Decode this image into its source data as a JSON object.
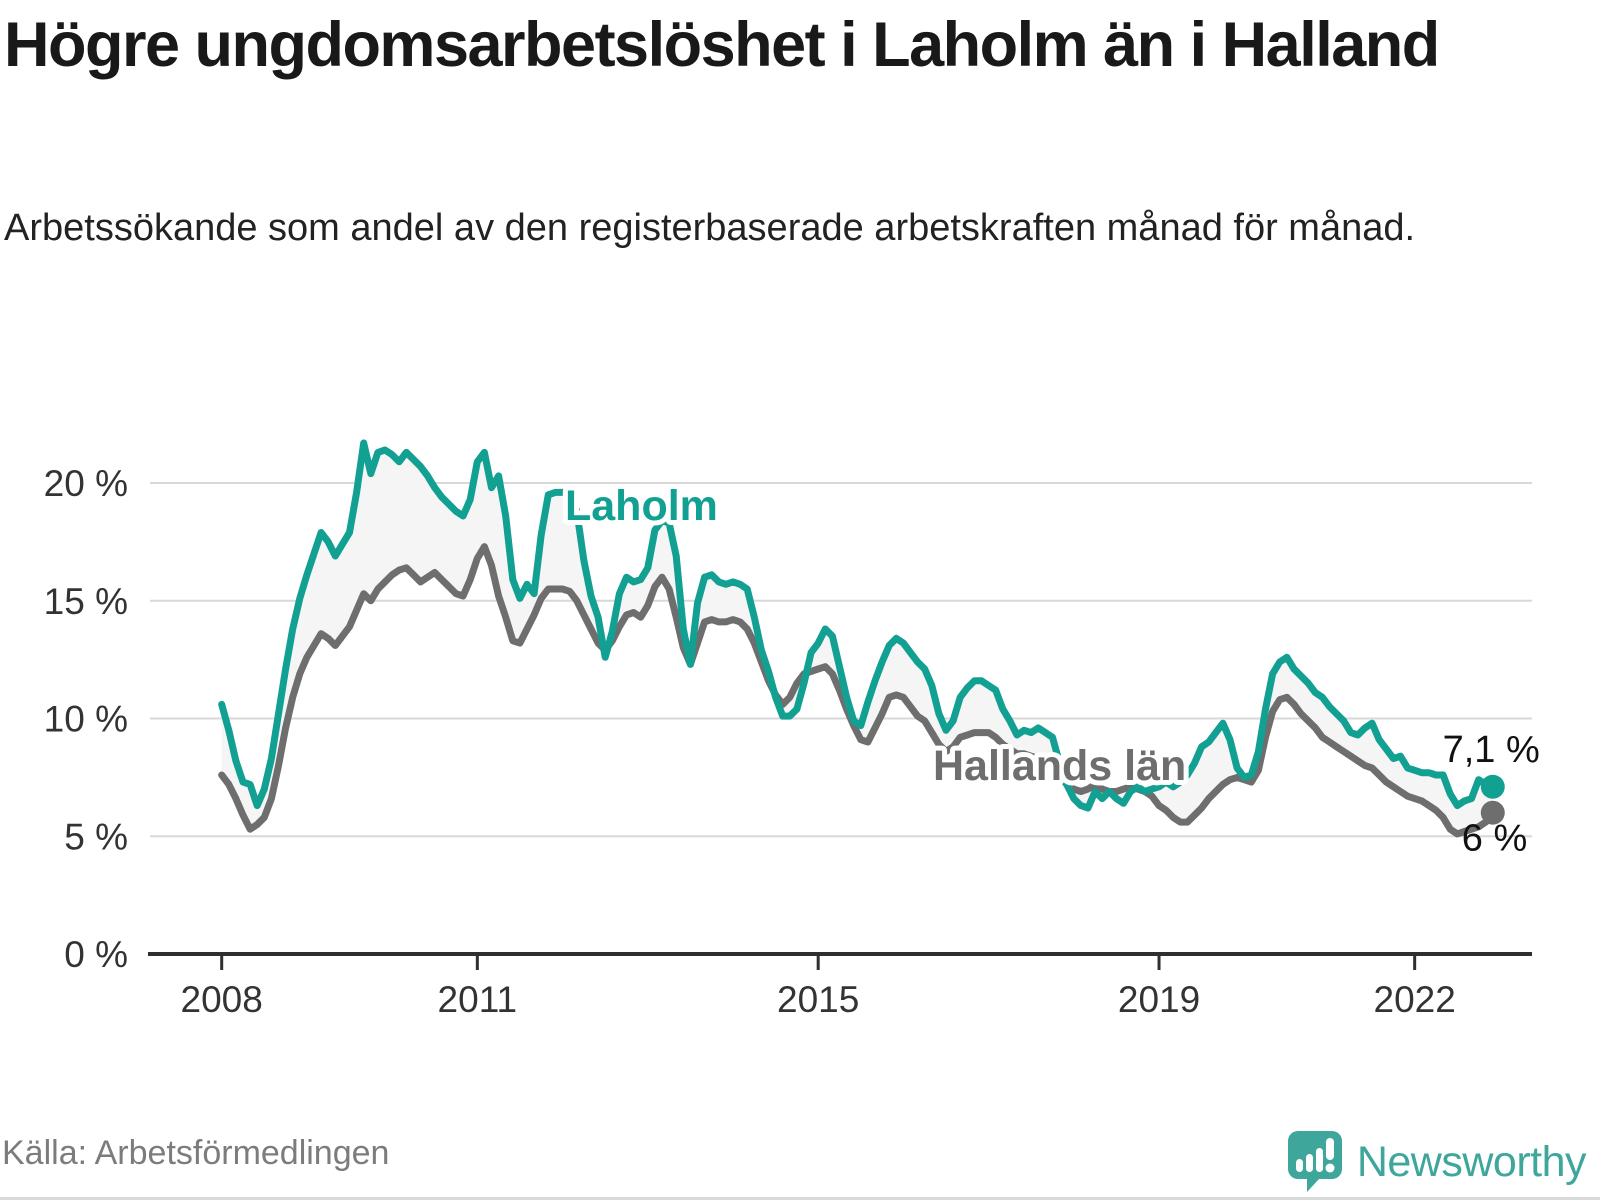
{
  "header": {
    "title": "Högre ungdomsarbetslöshet i Laholm än i Halland",
    "subtitle": "Arbetssökande som andel av den registerbaserade arbetskraften månad för månad."
  },
  "footer": {
    "source": "Källa: Arbetsförmedlingen",
    "brand_name": "Newsworthy",
    "brand_color": "#3fa69c"
  },
  "colors": {
    "laholm": "#12a092",
    "halland": "#6e6e6e",
    "gridline": "#d8d8d8",
    "axis": "#2f2f2f",
    "band_fill": "#f5f5f5",
    "value_label": "#111111"
  },
  "chart_data": {
    "type": "line",
    "unit": "%",
    "frequency": "monthly",
    "start": "2008-01",
    "end": "2022-12",
    "grid": true,
    "ylim": [
      0,
      22.5
    ],
    "y_ticks": [
      0,
      5,
      10,
      15,
      20
    ],
    "y_tick_labels": [
      "0 %",
      "5 %",
      "10 %",
      "15 %",
      "20 %"
    ],
    "x_ticks": [
      2008,
      2011,
      2015,
      2019,
      2022
    ],
    "band_between_series": true,
    "series": [
      {
        "name": "Laholm",
        "end_label": "7,1 %",
        "values": [
          10.6,
          9.5,
          8.2,
          7.3,
          7.2,
          6.3,
          7.0,
          8.3,
          10.2,
          12.1,
          13.8,
          15.1,
          16.1,
          17.0,
          17.9,
          17.5,
          16.9,
          17.4,
          17.9,
          19.6,
          21.7,
          20.4,
          21.3,
          21.4,
          21.2,
          20.9,
          21.3,
          21.0,
          20.7,
          20.3,
          19.8,
          19.4,
          19.1,
          18.8,
          18.6,
          19.3,
          20.9,
          21.3,
          19.8,
          20.3,
          18.6,
          15.9,
          15.1,
          15.7,
          15.3,
          17.8,
          19.5,
          19.6,
          19.6,
          19.7,
          18.8,
          16.7,
          15.2,
          14.3,
          12.6,
          13.7,
          15.3,
          16.0,
          15.8,
          15.9,
          16.4,
          18.0,
          18.4,
          18.3,
          16.9,
          13.8,
          12.3,
          14.9,
          16.0,
          16.1,
          15.8,
          15.7,
          15.8,
          15.7,
          15.5,
          14.3,
          12.9,
          12.0,
          10.9,
          10.1,
          10.1,
          10.4,
          11.5,
          12.8,
          13.2,
          13.8,
          13.5,
          12.2,
          10.9,
          9.9,
          9.7,
          10.7,
          11.6,
          12.4,
          13.1,
          13.4,
          13.2,
          12.8,
          12.4,
          12.1,
          11.4,
          10.2,
          9.5,
          9.9,
          10.9,
          11.3,
          11.6,
          11.6,
          11.4,
          11.2,
          10.4,
          9.9,
          9.3,
          9.5,
          9.4,
          9.6,
          9.4,
          9.2,
          8.1,
          7.2,
          6.6,
          6.3,
          6.2,
          6.9,
          6.6,
          6.9,
          6.6,
          6.4,
          6.9,
          7.1,
          6.9,
          7.0,
          7.1,
          7.3,
          7.1,
          7.3,
          7.6,
          8.1,
          8.8,
          9.0,
          9.4,
          9.8,
          9.1,
          7.9,
          7.5,
          7.6,
          8.6,
          10.4,
          11.9,
          12.4,
          12.6,
          12.1,
          11.8,
          11.5,
          11.1,
          10.9,
          10.5,
          10.2,
          9.9,
          9.4,
          9.3,
          9.6,
          9.8,
          9.1,
          8.7,
          8.3,
          8.4,
          7.9,
          7.8,
          7.7,
          7.7,
          7.6,
          7.6,
          6.8,
          6.3,
          6.5,
          6.6,
          7.4,
          7.2,
          7.1
        ]
      },
      {
        "name": "Hallands län",
        "end_label": "6 %",
        "values": [
          7.6,
          7.2,
          6.6,
          5.9,
          5.3,
          5.5,
          5.8,
          6.6,
          8.0,
          9.6,
          10.9,
          11.9,
          12.6,
          13.1,
          13.6,
          13.4,
          13.1,
          13.5,
          13.9,
          14.6,
          15.3,
          15.0,
          15.5,
          15.8,
          16.1,
          16.3,
          16.4,
          16.1,
          15.8,
          16.0,
          16.2,
          15.9,
          15.6,
          15.3,
          15.2,
          15.9,
          16.8,
          17.3,
          16.5,
          15.2,
          14.3,
          13.3,
          13.2,
          13.8,
          14.4,
          15.1,
          15.5,
          15.5,
          15.5,
          15.4,
          15.0,
          14.4,
          13.8,
          13.2,
          12.9,
          13.3,
          13.9,
          14.4,
          14.5,
          14.3,
          14.8,
          15.6,
          16.0,
          15.5,
          14.3,
          13.0,
          12.3,
          13.2,
          14.1,
          14.2,
          14.1,
          14.1,
          14.2,
          14.1,
          13.8,
          13.2,
          12.4,
          11.6,
          11.0,
          10.6,
          10.9,
          11.5,
          11.9,
          12.0,
          12.1,
          12.2,
          11.9,
          11.2,
          10.4,
          9.7,
          9.1,
          9.0,
          9.6,
          10.2,
          10.9,
          11.0,
          10.9,
          10.5,
          10.1,
          9.9,
          9.4,
          8.9,
          8.6,
          8.8,
          9.2,
          9.3,
          9.4,
          9.4,
          9.4,
          9.2,
          8.9,
          8.7,
          8.5,
          8.5,
          8.4,
          8.3,
          8.1,
          7.9,
          7.6,
          7.2,
          7.0,
          6.9,
          7.0,
          7.2,
          7.0,
          6.9,
          6.9,
          7.0,
          7.1,
          7.0,
          6.9,
          6.7,
          6.3,
          6.1,
          5.8,
          5.6,
          5.6,
          5.9,
          6.2,
          6.6,
          6.9,
          7.2,
          7.4,
          7.5,
          7.4,
          7.3,
          7.8,
          9.2,
          10.3,
          10.8,
          10.9,
          10.6,
          10.2,
          9.9,
          9.6,
          9.2,
          9.0,
          8.8,
          8.6,
          8.4,
          8.2,
          8.0,
          7.9,
          7.6,
          7.3,
          7.1,
          6.9,
          6.7,
          6.6,
          6.5,
          6.3,
          6.1,
          5.8,
          5.3,
          5.1,
          5.2,
          5.3,
          5.4,
          5.6,
          6.0
        ]
      }
    ]
  }
}
